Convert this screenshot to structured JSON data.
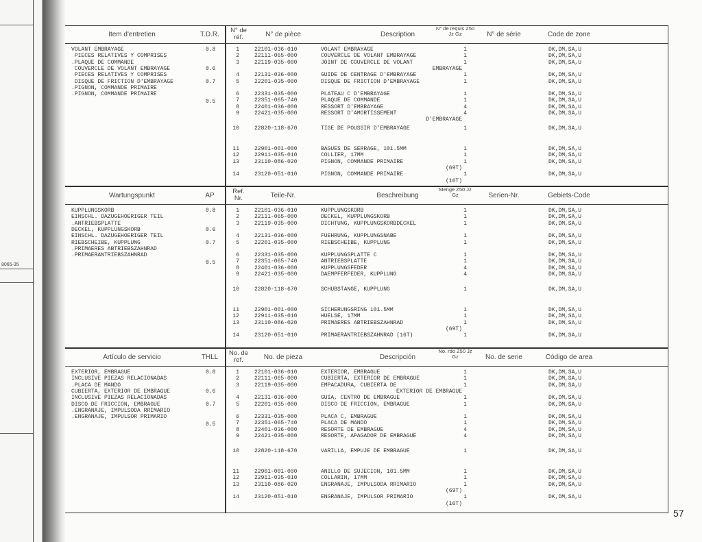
{
  "prev_page": {
    "code": "8065-35"
  },
  "page_number": "57",
  "sections": [
    {
      "headers": {
        "item": "Item d'entretien",
        "time": "T.D.R.",
        "ref": "N° de réf.",
        "part": "N° de pièce",
        "desc": "Description",
        "qty": "N° de requis Z50 Jz Gz",
        "serial": "N° de série",
        "area": "Code de zone"
      },
      "items": [
        {
          "t": "VOLANT EMBRAYAGE",
          "v": "0.8"
        },
        {
          "t": " PIECES RELATIVES Y COMPRISES",
          "v": ""
        },
        {
          "t": ".PLAQUE DE COMMANDE",
          "v": ""
        },
        {
          "t": " COUVERCLE DE VOLANT EMBRAYAGE",
          "v": "0.6"
        },
        {
          "t": " PIECES RELATIVES Y COMPRISES",
          "v": ""
        },
        {
          "t": " DISQUE DE FRICTION D'EMBRAYAGE",
          "v": "0.7"
        },
        {
          "t": ".PIGNON, COMMANDE PRIMAIRE",
          "v": ""
        },
        {
          "t": ".PIGNON, COMMANDE PRIMAIRE",
          "v": ""
        }
      ],
      "extra_time": "0.5",
      "rows": [
        {
          "ref": "1",
          "part": "22101-036-010",
          "desc": "VOLANT EMBRAYAGE",
          "cont": "",
          "qty": "1",
          "area": "DK,DM,SA,U"
        },
        {
          "ref": "2",
          "part": "22111-065-000",
          "desc": "COUVERCLE DE VOLANT EMBRAYAGE",
          "cont": "",
          "qty": "1",
          "area": "DK,DM,SA,U"
        },
        {
          "ref": "3",
          "part": "22119-035-000",
          "desc": "JOINT DE COUVERCLE DE VOLANT",
          "cont": "EMBRAYAGE",
          "qty": "1",
          "area": "DK,DM,SA,U"
        },
        {
          "ref": "4",
          "part": "22131-036-000",
          "desc": "GUIDE DE CENTRAGE D'EMBRAYAGE",
          "cont": "",
          "qty": "1",
          "area": "DK,DM,SA,U"
        },
        {
          "ref": "5",
          "part": "22201-035-000",
          "desc": "DISQUE DE FRICTION D'EMBRAYAGE",
          "cont": "",
          "qty": "1",
          "area": "DK,DM,SA,U"
        },
        {
          "ref": "6",
          "part": "22331-035-000",
          "desc": "PLATEAU C D'EMBRAYAGE",
          "cont": "",
          "qty": "1",
          "area": "DK,DM,SA,U"
        },
        {
          "ref": "7",
          "part": "22351-065-740",
          "desc": "PLAQUE DE COMMANDE",
          "cont": "",
          "qty": "1",
          "area": "DK,DM,SA,U"
        },
        {
          "ref": "8",
          "part": "22401-036-000",
          "desc": "RESSORT D'EMBRAYAGE",
          "cont": "",
          "qty": "4",
          "area": "DK,DM,SA,U"
        },
        {
          "ref": "9",
          "part": "22421-035-000",
          "desc": "RESSORT D'AMORTISSEMENT",
          "cont": "D'EMBRAYAGE",
          "qty": "4",
          "area": "DK,DM,SA,U"
        },
        {
          "ref": "10",
          "part": "22820-118-670",
          "desc": "TIGE DE POUSSIR D'EMBRAYAGE",
          "cont": "",
          "qty": "1",
          "area": "DK,DM,SA,U"
        },
        {
          "ref": "11",
          "part": "22901-001-000",
          "desc": "BAGUES DE SERRAGE, 101.5MM",
          "cont": "",
          "qty": "1",
          "area": "DK,DM,SA,U"
        },
        {
          "ref": "12",
          "part": "22911-035-010",
          "desc": "COLLIER, 17MM",
          "cont": "",
          "qty": "1",
          "area": "DK,DM,SA,U"
        },
        {
          "ref": "13",
          "part": "23110-086-020",
          "desc": "PIGNON, COMMANDE PRIMAIRE",
          "cont": "(69T)",
          "qty": "1",
          "area": "DK,DM,SA,U"
        },
        {
          "ref": "14",
          "part": "23120-051-010",
          "desc": "PIGNON, COMMANDE PRIMAIRE",
          "cont": "(16T)",
          "qty": "1",
          "area": "DK,DM,SA,U"
        }
      ]
    },
    {
      "headers": {
        "item": "Wartungspunkt",
        "time": "AP",
        "ref": "Ref. Nr.",
        "part": "Teile-Nr.",
        "desc": "Beschreibung",
        "qty": "Menge Z50 Jz Gz",
        "serial": "Serien-Nr.",
        "area": "Gebiets-Code"
      },
      "items": [
        {
          "t": "KUPPLUNGSKORB",
          "v": "0.8"
        },
        {
          "t": "EINSCHL. DAZUGEHOERIGER TEIL",
          "v": ""
        },
        {
          "t": ".ANTRIEBSPLATTE",
          "v": ""
        },
        {
          "t": "DECKEL, KUPPLUNGSKORB",
          "v": "0.6"
        },
        {
          "t": "EINSCHL. DAZUGEHOERIGER TEIL",
          "v": ""
        },
        {
          "t": "RIEBSCHEIBE, KUPPLUNG",
          "v": "0.7"
        },
        {
          "t": ".PRIMAERES ABTRIEBSZAHNRAD",
          "v": ""
        },
        {
          "t": ".PRIMAERANTRIEBSZAHNRAD",
          "v": ""
        }
      ],
      "extra_time": "0.5",
      "rows": [
        {
          "ref": "1",
          "part": "22101-036-010",
          "desc": "KUPPLUNGSKORB",
          "cont": "",
          "qty": "1",
          "area": "DK,DM,SA,U"
        },
        {
          "ref": "2",
          "part": "22111-065-000",
          "desc": "DECKEL, KUPPLUNGSKORB",
          "cont": "",
          "qty": "1",
          "area": "DK,DM,SA,U"
        },
        {
          "ref": "3",
          "part": "22119-035-000",
          "desc": "DICHTUNG, KUPPLUNGSKORBDECKEL",
          "cont": "",
          "qty": "1",
          "area": "DK,DM,SA,U"
        },
        {
          "ref": "4",
          "part": "22131-036-000",
          "desc": "FUEHRUNG, KUPPLUNGSNABE",
          "cont": "",
          "qty": "1",
          "area": "DK,DM,SA,U"
        },
        {
          "ref": "5",
          "part": "22201-035-000",
          "desc": "RIEBSCHEIBE, KUPPLUNG",
          "cont": "",
          "qty": "1",
          "area": "DK,DM,SA,U"
        },
        {
          "ref": "6",
          "part": "22331-035-000",
          "desc": "KUPPLUNGSPLATTE C",
          "cont": "",
          "qty": "1",
          "area": "DK,DM,SA,U"
        },
        {
          "ref": "7",
          "part": "22351-065-740",
          "desc": "ANTRIEBSPLATTE",
          "cont": "",
          "qty": "1",
          "area": "DK,DM,SA,U"
        },
        {
          "ref": "8",
          "part": "22401-036-000",
          "desc": "KUPPLUNGSFEDER",
          "cont": "",
          "qty": "4",
          "area": "DK,DM,SA,U"
        },
        {
          "ref": "9",
          "part": "22421-035-000",
          "desc": "DAEMPFERFEDER, KUPPLUNG",
          "cont": "",
          "qty": "4",
          "area": "DK,DM,SA,U"
        },
        {
          "ref": "10",
          "part": "22820-118-670",
          "desc": "SCHUBSTANGE, KUPPLUNG",
          "cont": "",
          "qty": "1",
          "area": "DK,DM,SA,U"
        },
        {
          "ref": "11",
          "part": "22901-001-000",
          "desc": "SICHERUNGSRING 101.5MM",
          "cont": "",
          "qty": "1",
          "area": "DK,DM,SA,U"
        },
        {
          "ref": "12",
          "part": "22911-035-010",
          "desc": "HUELSE, 17MM",
          "cont": "",
          "qty": "1",
          "area": "DK,DM,SA,U"
        },
        {
          "ref": "13",
          "part": "23110-086-020",
          "desc": "PRIMAERES ABTRIEBSZAHNRAD",
          "cont": "(69T)",
          "qty": "1",
          "area": "DK,DM,SA,U"
        },
        {
          "ref": "14",
          "part": "23120-051-010",
          "desc": "PRIMAERANTRIEBSZAHNRAD (16T)",
          "cont": "",
          "qty": "1",
          "area": "DK,DM,SA,U"
        }
      ]
    },
    {
      "headers": {
        "item": "Artículo de servicio",
        "time": "THLL",
        "ref": "No. de ref.",
        "part": "No. de pieza",
        "desc": "Descripción",
        "qty": "No. rdo Z50 Jz Gz",
        "serial": "No. de serie",
        "area": "Código de area"
      },
      "items": [
        {
          "t": "EXTERIOR, EMBRAGUE",
          "v": "0.8"
        },
        {
          "t": "INCLUSIVE PIEZAS RELACIONADAS",
          "v": ""
        },
        {
          "t": ".PLACA DE MANDO",
          "v": ""
        },
        {
          "t": "CUBIERTA, EXTERIOR DE EMBRAGUE",
          "v": "0.6"
        },
        {
          "t": "INCLUSIVE PIEZAS RELACIONADAS",
          "v": ""
        },
        {
          "t": "DISCO DE FRICCION, EMBRAGUE",
          "v": "0.7"
        },
        {
          "t": ".ENGRANAJE, IMPULSODA RRIMARIO",
          "v": ""
        },
        {
          "t": ".ENGRANAJE, IMPULSOR PRIMARIO",
          "v": ""
        }
      ],
      "extra_time": "0.5",
      "rows": [
        {
          "ref": "1",
          "part": "22101-036-010",
          "desc": "EXTERIOR, EMBRAGUE",
          "cont": "",
          "qty": "1",
          "area": "DK,DM,SA,U"
        },
        {
          "ref": "2",
          "part": "22111-065-000",
          "desc": "CUBIERTA, EXTERIOR DE EMBRAGUE",
          "cont": "",
          "qty": "1",
          "area": "DK,DM,SA,U"
        },
        {
          "ref": "3",
          "part": "22119-035-000",
          "desc": "EMPACADURA, CUBIERTA DE",
          "cont": "EXTERIOR DE EMBRAGUE",
          "qty": "1",
          "area": "DK,DM,SA,U"
        },
        {
          "ref": "4",
          "part": "22131-036-000",
          "desc": "GUIA, CENTRO DE EMBRAGUE",
          "cont": "",
          "qty": "1",
          "area": "DK,DM,SA,U"
        },
        {
          "ref": "5",
          "part": "22201-035-000",
          "desc": "DISCO DE FRICCION, EMBRAGUE",
          "cont": "",
          "qty": "1",
          "area": "DK,DM,SA,U"
        },
        {
          "ref": "6",
          "part": "22331-035-000",
          "desc": "PLACA C, EMBRAGUE",
          "cont": "",
          "qty": "1",
          "area": "DK,DM,SA,U"
        },
        {
          "ref": "7",
          "part": "22351-065-740",
          "desc": "PLACA DE MANDO",
          "cont": "",
          "qty": "1",
          "area": "DK,DM,SA,U"
        },
        {
          "ref": "8",
          "part": "22401-036-000",
          "desc": "RESORTE DE EMBRAGUE",
          "cont": "",
          "qty": "4",
          "area": "DK,DM,SA,U"
        },
        {
          "ref": "9",
          "part": "22421-035-000",
          "desc": "RESORTE, APAGADOR DE EMBRAGUE",
          "cont": "",
          "qty": "4",
          "area": "DK,DM,SA,U"
        },
        {
          "ref": "10",
          "part": "22820-118-670",
          "desc": "VARILLA, EMPUJE DE EMBRAGUE",
          "cont": "",
          "qty": "1",
          "area": "DK,DM,SA,U"
        },
        {
          "ref": "11",
          "part": "22901-001-000",
          "desc": "ANILLO DE SUJECION, 101.5MM",
          "cont": "",
          "qty": "1",
          "area": "DK,DM,SA,U"
        },
        {
          "ref": "12",
          "part": "22911-035-010",
          "desc": "COLLARIN, 17MM",
          "cont": "",
          "qty": "1",
          "area": "DK,DM,SA,U"
        },
        {
          "ref": "13",
          "part": "23110-086-020",
          "desc": "ENGRANAJE, IMPULSODA RRIMARIO",
          "cont": "(69T)",
          "qty": "1",
          "area": "DK,DM,SA,U"
        },
        {
          "ref": "14",
          "part": "23120-051-010",
          "desc": "ENGRANAJE, IMPULSOR PRIMARIO",
          "cont": "(16T)",
          "qty": "1",
          "area": "DK,DM,SA,U"
        }
      ]
    }
  ]
}
